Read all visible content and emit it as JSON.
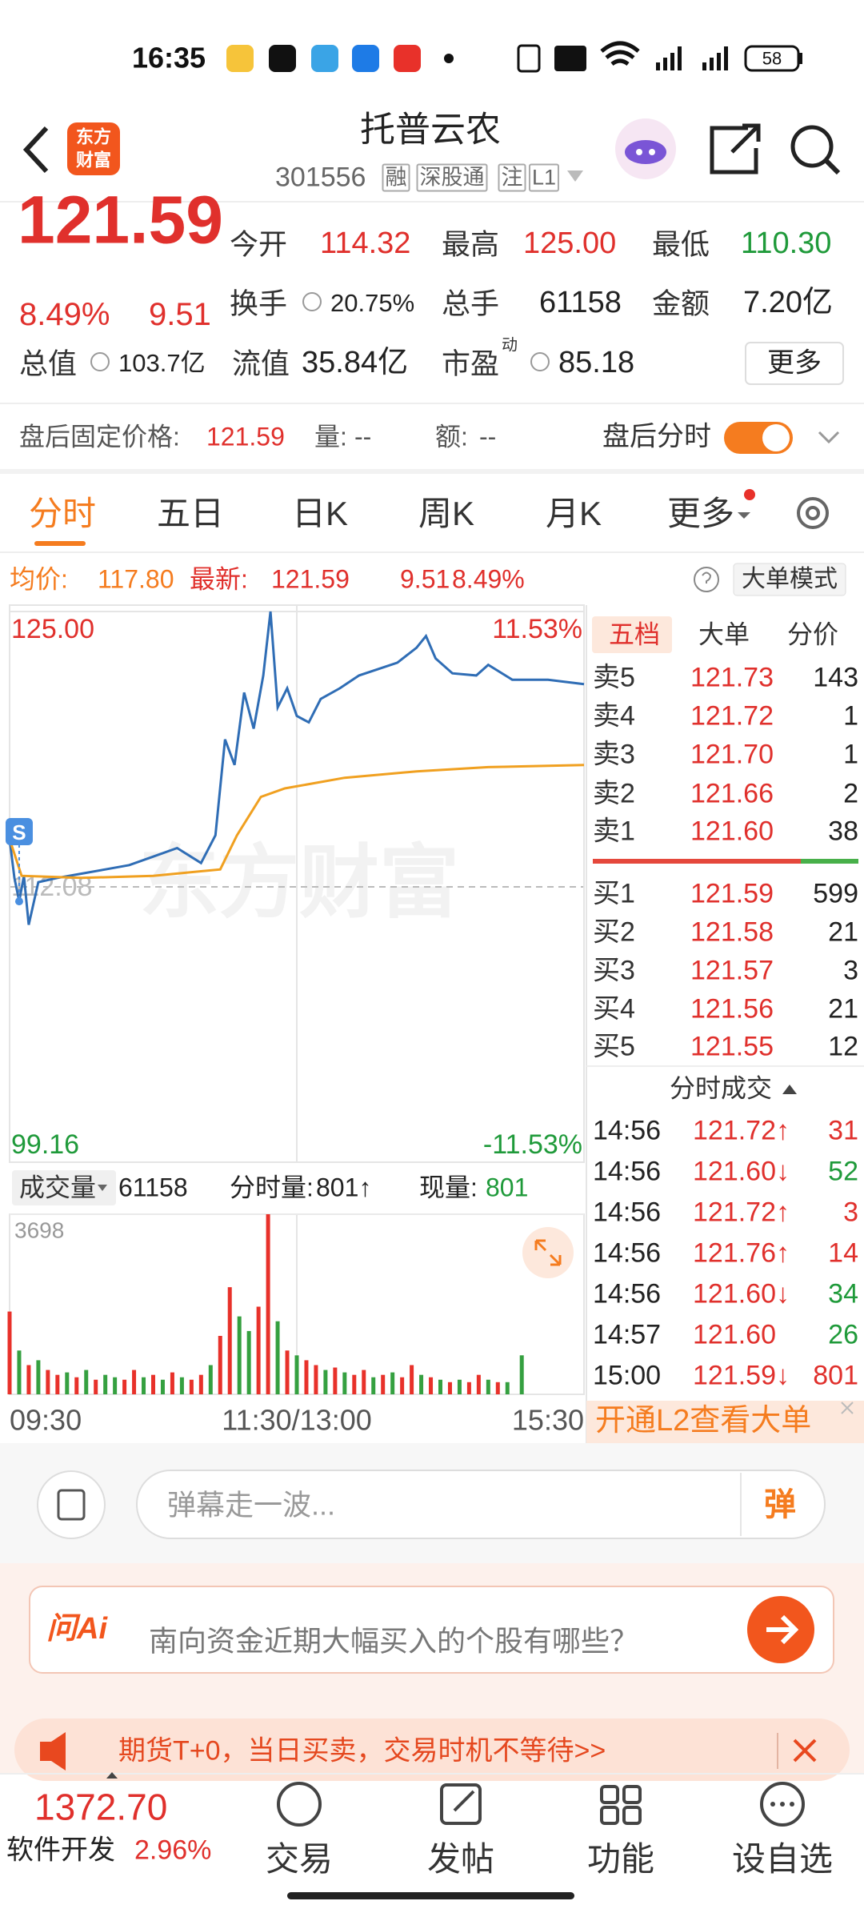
{
  "status_bar": {
    "time": "16:35",
    "battery": "58"
  },
  "header": {
    "logo": [
      "东方",
      "财富"
    ],
    "title": "托普云农",
    "code": "301556",
    "tags": [
      "融",
      "深股通",
      "注",
      "L1"
    ]
  },
  "quote": {
    "price": "121.59",
    "change_pct": "8.49%",
    "change": "9.51",
    "stats": [
      {
        "label": "今开",
        "value": "114.32"
      },
      {
        "label": "最高",
        "value": "125.00"
      },
      {
        "label": "最低",
        "value": "110.30"
      },
      {
        "label": "换手",
        "value": "20.75%"
      },
      {
        "label": "总手",
        "value": "61158"
      },
      {
        "label": "金额",
        "value": "7.20亿"
      },
      {
        "label": "总值",
        "value": "103.7亿"
      },
      {
        "label": "流值",
        "value": "35.84亿"
      },
      {
        "label": "市盈",
        "sup": "动",
        "value": "85.18"
      }
    ],
    "more": "更多"
  },
  "after_hours": {
    "label": "盘后固定价格:",
    "price": "121.59",
    "vol_label": "量:",
    "vol": "--",
    "amt_label": "额:",
    "amt": "--",
    "toggle_label": "盘后分时"
  },
  "tabs": [
    "分时",
    "五日",
    "日K",
    "周K",
    "月K",
    "更多"
  ],
  "chart_data": {
    "type": "line",
    "avg_value": "117.80",
    "latest_value": "121.59",
    "latest_change": "9.51",
    "latest_pct": "8.49%",
    "mode": "大单模式",
    "watermark": "东方财富",
    "signal": "S",
    "ylim": [
      99.16,
      125.0
    ],
    "yticks": [
      {
        "value": 125.0,
        "label": "125.00"
      },
      112.08,
      99.16
    ],
    "pct_labels": [
      "11.53%",
      "-11.53%"
    ],
    "xlim": [
      0,
      240
    ],
    "xticks": [
      {
        "value": 0,
        "label": "09:30"
      },
      {
        "value": 120,
        "label": "11:30/13:00"
      },
      {
        "value": 240,
        "label": "15:30"
      }
    ],
    "series": [
      {
        "name": "最新:",
        "color": "#2f6db5",
        "x": [
          0,
          2,
          4,
          6,
          8,
          12,
          20,
          30,
          40,
          50,
          60,
          70,
          80,
          86,
          90,
          94,
          98,
          102,
          106,
          109,
          112,
          116,
          120,
          125,
          130,
          138,
          146,
          154,
          162,
          170,
          174,
          178,
          185,
          195,
          200,
          210,
          225,
          240
        ],
        "values": [
          114.32,
          112.5,
          111.4,
          112.6,
          110.3,
          112.3,
          112.5,
          112.7,
          112.9,
          113.1,
          113.5,
          113.9,
          113.2,
          114.5,
          119.0,
          117.8,
          121.2,
          119.5,
          122.0,
          125.0,
          120.5,
          121.4,
          120.1,
          119.8,
          120.9,
          121.4,
          122.0,
          122.3,
          122.6,
          123.3,
          123.85,
          122.8,
          122.1,
          122.0,
          122.5,
          121.8,
          121.8,
          121.59
        ]
      },
      {
        "name": "均价:",
        "color": "#f0a020",
        "x": [
          0,
          5,
          30,
          60,
          88,
          95,
          105,
          115,
          140,
          170,
          200,
          240
        ],
        "values": [
          114.32,
          112.6,
          112.5,
          112.6,
          112.9,
          114.5,
          116.3,
          116.7,
          117.2,
          117.5,
          117.7,
          117.8
        ]
      }
    ],
    "volume": {
      "label": "成交量",
      "total": "61158",
      "minute_label": "分时量:",
      "minute_value": "801↑",
      "current_label": "现量:",
      "current_value": "801",
      "ylim": [
        0,
        3698
      ],
      "yticks": [
        3698
      ],
      "x": [
        0,
        4,
        8,
        12,
        16,
        20,
        24,
        28,
        32,
        36,
        40,
        44,
        48,
        52,
        56,
        60,
        64,
        68,
        72,
        76,
        80,
        84,
        88,
        92,
        96,
        100,
        104,
        108,
        112,
        116,
        120,
        124,
        128,
        132,
        136,
        140,
        144,
        148,
        152,
        156,
        160,
        164,
        168,
        172,
        176,
        180,
        184,
        188,
        192,
        196,
        200,
        204,
        208,
        214
      ],
      "values": [
        1700,
        900,
        600,
        700,
        500,
        400,
        450,
        350,
        500,
        300,
        400,
        350,
        300,
        500,
        350,
        400,
        300,
        450,
        350,
        300,
        400,
        600,
        1200,
        2200,
        1600,
        1300,
        1800,
        3698,
        1500,
        900,
        800,
        700,
        600,
        500,
        550,
        450,
        400,
        500,
        350,
        400,
        450,
        350,
        600,
        400,
        350,
        300,
        250,
        300,
        250,
        400,
        300,
        250,
        250,
        801
      ],
      "colors": [
        "#e8312a",
        "#35a040",
        "#e8312a",
        "#35a040",
        "#e8312a",
        "#e8312a",
        "#35a040",
        "#e8312a",
        "#35a040",
        "#e8312a",
        "#35a040",
        "#35a040",
        "#e8312a",
        "#e8312a",
        "#35a040",
        "#e8312a",
        "#35a040",
        "#e8312a",
        "#35a040",
        "#e8312a",
        "#e8312a",
        "#35a040",
        "#e8312a",
        "#e8312a",
        "#35a040",
        "#35a040",
        "#e8312a",
        "#e8312a",
        "#35a040",
        "#e8312a",
        "#35a040",
        "#e8312a",
        "#e8312a",
        "#35a040",
        "#e8312a",
        "#35a040",
        "#e8312a",
        "#e8312a",
        "#35a040",
        "#e8312a",
        "#35a040",
        "#e8312a",
        "#e8312a",
        "#35a040",
        "#e8312a",
        "#35a040",
        "#e8312a",
        "#35a040",
        "#e8312a",
        "#e8312a",
        "#35a040",
        "#e8312a",
        "#35a040",
        "#35a040"
      ]
    }
  },
  "order_book": {
    "tabs": [
      "五档",
      "大单",
      "分价"
    ],
    "asks": [
      {
        "label": "卖5",
        "price": "121.73",
        "vol": "143"
      },
      {
        "label": "卖4",
        "price": "121.72",
        "vol": "1"
      },
      {
        "label": "卖3",
        "price": "121.70",
        "vol": "1"
      },
      {
        "label": "卖2",
        "price": "121.66",
        "vol": "2"
      },
      {
        "label": "卖1",
        "price": "121.60",
        "vol": "38"
      }
    ],
    "bids": [
      {
        "label": "买1",
        "price": "121.59",
        "vol": "599"
      },
      {
        "label": "买2",
        "price": "121.58",
        "vol": "21"
      },
      {
        "label": "买3",
        "price": "121.57",
        "vol": "3"
      },
      {
        "label": "买4",
        "price": "121.56",
        "vol": "21"
      },
      {
        "label": "买5",
        "price": "121.55",
        "vol": "12"
      }
    ]
  },
  "trades": {
    "title": "分时成交",
    "rows": [
      {
        "time": "14:56",
        "price": "121.72↑",
        "vol": "31",
        "vol_color": "#e0302c"
      },
      {
        "time": "14:56",
        "price": "121.60↓",
        "vol": "52",
        "vol_color": "#1f9a3a"
      },
      {
        "time": "14:56",
        "price": "121.72↑",
        "vol": "3",
        "vol_color": "#e0302c"
      },
      {
        "time": "14:56",
        "price": "121.76↑",
        "vol": "14",
        "vol_color": "#e0302c"
      },
      {
        "time": "14:56",
        "price": "121.60↓",
        "vol": "34",
        "vol_color": "#1f9a3a"
      },
      {
        "time": "14:57",
        "price": "121.60",
        "vol": "26",
        "vol_color": "#1f9a3a"
      },
      {
        "time": "15:00",
        "price": "121.59↓",
        "vol": "801",
        "vol_color": "#e0302c"
      }
    ],
    "l2_banner": "开通L2查看大单"
  },
  "danmaku": {
    "placeholder": "弹幕走一波...",
    "button": "弹"
  },
  "ai": {
    "logo": "问Ai",
    "prompt": "南向资金近期大幅买入的个股有哪些？"
  },
  "ad": "期货T+0，当日买卖，交易时机不等待>>",
  "bottom_nav": {
    "index_value": "1372.70",
    "index_name": "软件开发",
    "index_change": "2.96%",
    "items": [
      "交易",
      "发帖",
      "功能",
      "设自选"
    ]
  }
}
